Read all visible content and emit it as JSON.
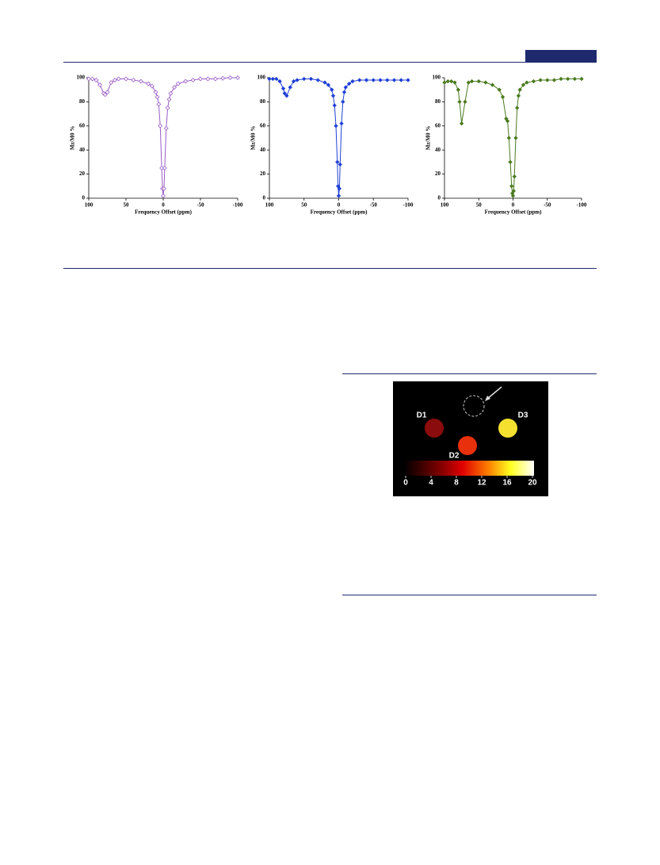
{
  "chart_data": [
    {
      "type": "line",
      "xlabel": "Frequency Offset (ppm)",
      "ylabel": "Mz/M0 %",
      "color": "#9a5cc8",
      "marker": "open-diamond",
      "xlim": [
        100,
        -100
      ],
      "xticks": [
        100,
        50,
        0,
        -50,
        -100
      ],
      "ylim": [
        0,
        100
      ],
      "yticks": [
        0,
        20,
        40,
        60,
        80,
        100
      ],
      "x": [
        100,
        95,
        90,
        85,
        80,
        78,
        75,
        70,
        65,
        60,
        50,
        40,
        30,
        20,
        15,
        10,
        8,
        6,
        4,
        2,
        1,
        0,
        -1,
        -2,
        -4,
        -6,
        -8,
        -10,
        -15,
        -20,
        -30,
        -40,
        -50,
        -60,
        -70,
        -80,
        -90,
        -100
      ],
      "values": [
        99,
        99,
        98,
        94,
        87,
        86,
        88,
        96,
        98,
        99,
        99,
        98,
        97,
        95,
        93,
        88,
        84,
        78,
        60,
        25,
        8,
        2,
        8,
        25,
        58,
        75,
        82,
        87,
        92,
        95,
        97,
        98,
        99,
        99,
        99,
        99.5,
        100,
        100
      ]
    },
    {
      "type": "line",
      "xlabel": "Frequency Offset (ppm)",
      "ylabel": "Mz/M0 %",
      "color": "#1f3fd6",
      "marker": "diamond",
      "xlim": [
        100,
        -100
      ],
      "xticks": [
        100,
        50,
        0,
        -50,
        -100
      ],
      "ylim": [
        0,
        100
      ],
      "yticks": [
        0,
        20,
        40,
        60,
        80,
        100
      ],
      "x": [
        100,
        95,
        90,
        85,
        80,
        78,
        75,
        70,
        65,
        60,
        50,
        40,
        30,
        20,
        15,
        10,
        8,
        6,
        4,
        2,
        1,
        0,
        -1,
        -2,
        -4,
        -6,
        -8,
        -10,
        -15,
        -20,
        -30,
        -40,
        -50,
        -60,
        -70,
        -80,
        -90,
        -100
      ],
      "values": [
        99,
        99,
        99,
        97,
        91,
        87,
        85,
        92,
        97,
        98,
        99,
        99,
        98,
        96,
        94,
        90,
        85,
        77,
        60,
        30,
        10,
        2,
        8,
        28,
        62,
        80,
        88,
        92,
        95,
        97,
        98,
        98,
        98,
        98,
        98,
        98,
        98,
        98
      ]
    },
    {
      "type": "line",
      "xlabel": "Frequency Offset (ppm)",
      "ylabel": "Mz/M0 %",
      "color": "#4a7a1e",
      "marker": "diamond",
      "xlim": [
        100,
        -100
      ],
      "xticks": [
        100,
        50,
        0,
        -50,
        -100
      ],
      "ylim": [
        0,
        100
      ],
      "yticks": [
        0,
        20,
        40,
        60,
        80,
        100
      ],
      "x": [
        100,
        95,
        90,
        85,
        80,
        78,
        75,
        70,
        65,
        60,
        50,
        40,
        30,
        20,
        15,
        10,
        8,
        6,
        4,
        2,
        1,
        0,
        -1,
        -2,
        -4,
        -6,
        -8,
        -10,
        -15,
        -20,
        -30,
        -40,
        -50,
        -60,
        -70,
        -80,
        -90,
        -100
      ],
      "values": [
        96,
        97,
        97,
        96,
        90,
        80,
        62,
        80,
        96,
        97,
        97,
        96,
        94,
        90,
        84,
        66,
        64,
        50,
        30,
        10,
        4,
        2,
        6,
        18,
        50,
        75,
        85,
        90,
        94,
        96,
        97,
        98,
        98,
        98,
        99,
        99,
        99,
        99
      ]
    }
  ],
  "figure": {
    "labels": [
      "D1",
      "D2",
      "D3"
    ],
    "colorbar": {
      "range": [
        0,
        20
      ],
      "ticks": [
        0,
        4,
        8,
        12,
        16,
        20
      ]
    }
  }
}
